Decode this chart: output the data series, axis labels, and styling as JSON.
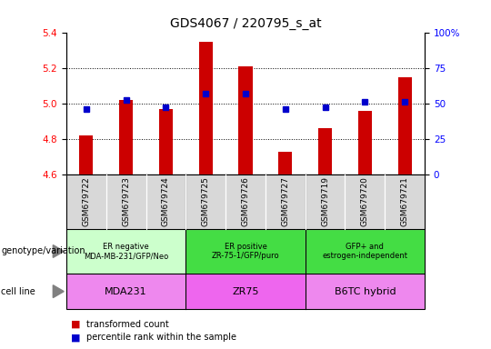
{
  "title": "GDS4067 / 220795_s_at",
  "samples": [
    "GSM679722",
    "GSM679723",
    "GSM679724",
    "GSM679725",
    "GSM679726",
    "GSM679727",
    "GSM679719",
    "GSM679720",
    "GSM679721"
  ],
  "bar_values": [
    4.82,
    5.02,
    4.97,
    5.35,
    5.21,
    4.73,
    4.86,
    4.96,
    5.15
  ],
  "dot_values": [
    4.97,
    5.02,
    4.98,
    5.06,
    5.06,
    4.97,
    4.98,
    5.01,
    5.01
  ],
  "ylim": [
    4.6,
    5.4
  ],
  "ylim_right": [
    0,
    100
  ],
  "yticks_left": [
    4.6,
    4.8,
    5.0,
    5.2,
    5.4
  ],
  "yticks_right": [
    0,
    25,
    50,
    75,
    100
  ],
  "bar_color": "#CC0000",
  "dot_color": "#0000CC",
  "bar_bottom": 4.6,
  "groups": [
    {
      "label": "ER negative\nMDA-MB-231/GFP/Neo",
      "start": 0,
      "end": 3,
      "color": "#ccffcc"
    },
    {
      "label": "ER positive\nZR-75-1/GFP/puro",
      "start": 3,
      "end": 6,
      "color": "#44dd44"
    },
    {
      "label": "GFP+ and\nestrogen-independent",
      "start": 6,
      "end": 9,
      "color": "#44dd44"
    }
  ],
  "cell_lines": [
    {
      "label": "MDA231",
      "start": 0,
      "end": 3,
      "color": "#ee88ee"
    },
    {
      "label": "ZR75",
      "start": 3,
      "end": 6,
      "color": "#ee66ee"
    },
    {
      "label": "B6TC hybrid",
      "start": 6,
      "end": 9,
      "color": "#ee88ee"
    }
  ],
  "genotype_label": "genotype/variation",
  "cell_line_label": "cell line",
  "legend_bar": "transformed count",
  "legend_dot": "percentile rank within the sample",
  "sample_box_color": "#d8d8d8",
  "title_fontsize": 10,
  "tick_fontsize": 7.5,
  "label_fontsize": 7.5
}
